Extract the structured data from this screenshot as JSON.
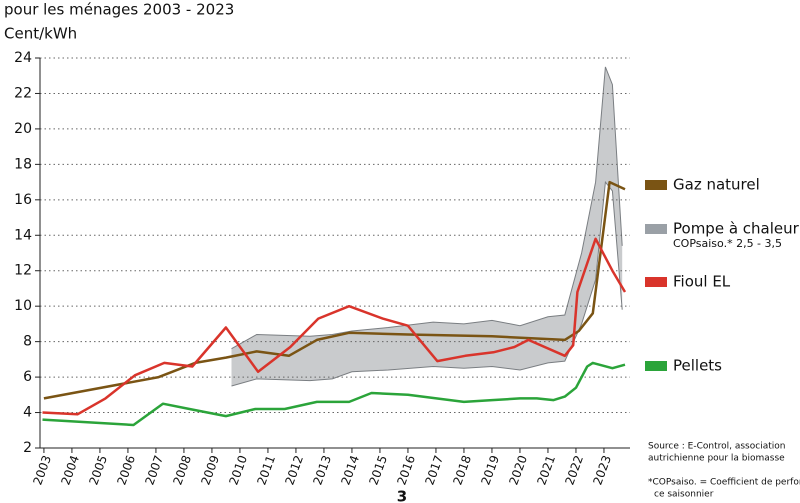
{
  "chart_data": {
    "type": "line",
    "title": "pour les ménages 2003 - 2023",
    "y_label": "Cent/kWh",
    "xlim": [
      2002.86,
      2023.93
    ],
    "xticks": [
      2003,
      2004,
      2005,
      2006,
      2007,
      2008,
      2009,
      2010,
      2011,
      2012,
      2013,
      2014,
      2015,
      2016,
      2017,
      2018,
      2019,
      2020,
      2021,
      2022,
      2023
    ],
    "ylim": [
      2,
      24
    ],
    "yticks": [
      2,
      4,
      6,
      8,
      10,
      12,
      14,
      16,
      18,
      20,
      22,
      24
    ],
    "grid": true,
    "series": [
      {
        "name": "Gaz naturel",
        "color": "#7a5414",
        "x": [
          2003,
          2007.1,
          2008.4,
          2009.5,
          2010.6,
          2011.75,
          2012.75,
          2013.9,
          2016,
          2019,
          2021.6,
          2022.1,
          2022.6,
          2023.2,
          2023.75
        ],
        "values": [
          4.8,
          6.0,
          6.8,
          7.1,
          7.45,
          7.2,
          8.1,
          8.5,
          8.4,
          8.3,
          8.1,
          8.6,
          9.6,
          17.0,
          16.6
        ]
      },
      {
        "name": "Pompe à chaleur",
        "subtitle": "COPsaiso.* 2,5 - 3,5",
        "kind": "band",
        "color": "#9aa0a6",
        "fill": "#c9cbcd",
        "x": [
          2009.7,
          2010.6,
          2012.5,
          2013.3,
          2014.0,
          2015.3,
          2016.9,
          2018.0,
          2019.0,
          2020.0,
          2021.0,
          2021.6,
          2022.2,
          2022.7,
          2023.05,
          2023.3,
          2023.65
        ],
        "low": [
          5.5,
          5.9,
          5.8,
          5.9,
          6.3,
          6.4,
          6.6,
          6.5,
          6.6,
          6.4,
          6.8,
          6.9,
          9.0,
          11.5,
          17.0,
          16.5,
          9.8
        ],
        "high": [
          7.6,
          8.4,
          8.3,
          8.4,
          8.6,
          8.8,
          9.1,
          9.0,
          9.2,
          8.9,
          9.4,
          9.5,
          13.0,
          17.0,
          23.5,
          22.5,
          13.4
        ]
      },
      {
        "name": "Fioul EL",
        "color": "#d9342b",
        "x": [
          2002.95,
          2004.2,
          2005.2,
          2006.25,
          2007.3,
          2008.3,
          2009.5,
          2010.65,
          2011.8,
          2012.8,
          2013.9,
          2015.1,
          2016.0,
          2017.05,
          2018.05,
          2019.05,
          2019.8,
          2020.3,
          2021.6,
          2021.9,
          2022.05,
          2022.7,
          2023.3,
          2023.75
        ],
        "values": [
          4.0,
          3.9,
          4.8,
          6.1,
          6.8,
          6.6,
          8.8,
          6.3,
          7.7,
          9.3,
          10.0,
          9.3,
          8.9,
          6.9,
          7.2,
          7.4,
          7.7,
          8.1,
          7.2,
          7.8,
          10.8,
          13.8,
          12.0,
          10.8
        ]
      },
      {
        "name": "Pellets",
        "color": "#2ba43a",
        "x": [
          2002.95,
          2006.2,
          2007.25,
          2008.2,
          2009.5,
          2010.55,
          2011.6,
          2012.75,
          2013.9,
          2014.7,
          2016.0,
          2018.0,
          2019.0,
          2020.0,
          2020.6,
          2021.2,
          2021.6,
          2022.0,
          2022.4,
          2022.6,
          2023.3,
          2023.75
        ],
        "values": [
          3.6,
          3.3,
          4.5,
          4.2,
          3.8,
          4.2,
          4.2,
          4.6,
          4.6,
          5.1,
          5.0,
          4.6,
          4.7,
          4.8,
          4.8,
          4.7,
          4.9,
          5.4,
          6.6,
          6.8,
          6.5,
          6.7
        ]
      }
    ],
    "source": [
      "Source : E-Control, association",
      "autrichienne pour la biomasse"
    ],
    "footnote": [
      "*COPsaiso. = Coefficient de performan-",
      "ce saisonnier"
    ],
    "page_number": "3"
  }
}
